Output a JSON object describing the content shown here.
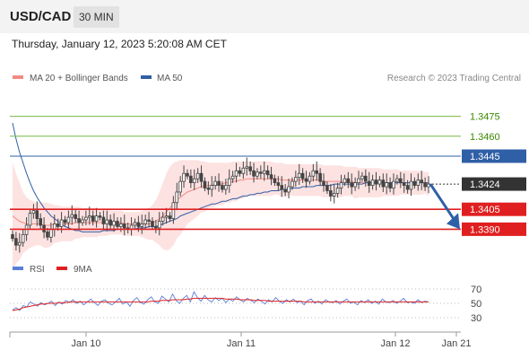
{
  "header": {
    "symbol": "USD/CAD",
    "timeframe": "30 MIN"
  },
  "datetime": "Thursday, January 12, 2023 5:20:08 AM CET",
  "legend": {
    "items": [
      {
        "label": "MA 20 + Bollinger Bands",
        "color": "#f28b82"
      },
      {
        "label": "MA 50",
        "color": "#2f5fa6"
      }
    ],
    "credit": "Research © 2023 Trading Central"
  },
  "rsi_legend": {
    "items": [
      {
        "label": "RSI",
        "color": "#5b7fd6"
      },
      {
        "label": "9MA",
        "color": "#e02020"
      }
    ]
  },
  "colors": {
    "candle": "#444444",
    "bollinger_fill": "#fde2e2",
    "bollinger_line": "#f28b82",
    "ma50": "#2f5fa6",
    "resistance_green": "#77b843",
    "resistance_blue": "#2f5fa6",
    "support_red": "#e02020",
    "last_price": "#333333",
    "arrow": "#2f5fa6"
  },
  "chart_data": [
    {
      "type": "candlestick",
      "symbol": "USD/CAD",
      "timeframe": "30 MIN",
      "x_ticks": [
        "Jan 10",
        "Jan 11",
        "Jan 12",
        "Jan 21"
      ],
      "ylim": [
        1.337,
        1.3495
      ],
      "price_levels": [
        {
          "label": "1.3475",
          "value": 1.3475,
          "kind": "resistance",
          "color": "#77b843",
          "text_color": "#3a8a00",
          "box": false
        },
        {
          "label": "1.3460",
          "value": 1.346,
          "kind": "resistance",
          "color": "#77b843",
          "text_color": "#3a8a00",
          "box": false
        },
        {
          "label": "1.3445",
          "value": 1.3445,
          "kind": "resistance",
          "color": "#2f5fa6",
          "text_color": "#ffffff",
          "box": true
        },
        {
          "label": "1.3424",
          "value": 1.3424,
          "kind": "last",
          "color": "#333333",
          "text_color": "#ffffff",
          "box": true
        },
        {
          "label": "1.3405",
          "value": 1.3405,
          "kind": "support",
          "color": "#e02020",
          "text_color": "#ffffff",
          "box": true
        },
        {
          "label": "1.3390",
          "value": 1.339,
          "kind": "support",
          "color": "#e02020",
          "text_color": "#ffffff",
          "box": true
        }
      ],
      "close_series": [
        1.3383,
        1.3378,
        1.338,
        1.3386,
        1.3393,
        1.3402,
        1.3404,
        1.3398,
        1.3393,
        1.3388,
        1.3384,
        1.339,
        1.3394,
        1.3392,
        1.3397,
        1.3395,
        1.3399,
        1.3401,
        1.3398,
        1.3395,
        1.3397,
        1.3399,
        1.34,
        1.3396,
        1.34,
        1.3399,
        1.3394,
        1.3397,
        1.3393,
        1.3396,
        1.3392,
        1.3394,
        1.3391,
        1.339,
        1.3393,
        1.3395,
        1.3392,
        1.3394,
        1.3397,
        1.3396,
        1.3392,
        1.3391,
        1.3396,
        1.3399,
        1.34,
        1.3398,
        1.341,
        1.3418,
        1.3426,
        1.3432,
        1.343,
        1.3425,
        1.3428,
        1.3432,
        1.3426,
        1.3421,
        1.342,
        1.3423,
        1.3426,
        1.3423,
        1.342,
        1.3423,
        1.3428,
        1.343,
        1.3434,
        1.3432,
        1.3436,
        1.3437,
        1.3434,
        1.343,
        1.3433,
        1.3432,
        1.3434,
        1.3431,
        1.3428,
        1.3425,
        1.3423,
        1.342,
        1.3418,
        1.3422,
        1.3426,
        1.3429,
        1.3432,
        1.3428,
        1.3426,
        1.343,
        1.3434,
        1.3432,
        1.3426,
        1.3423,
        1.3419,
        1.3415,
        1.3417,
        1.3421,
        1.3425,
        1.3428,
        1.3425,
        1.3422,
        1.3425,
        1.3428,
        1.343,
        1.3426,
        1.3423,
        1.3427,
        1.3424,
        1.3427,
        1.3422,
        1.3425,
        1.3421,
        1.3426,
        1.3428,
        1.3425,
        1.3423,
        1.342,
        1.3426,
        1.3423,
        1.3427,
        1.3425,
        1.3422,
        1.3424
      ],
      "bollinger_upper": [
        1.344,
        1.3432,
        1.3425,
        1.3418,
        1.3414,
        1.3412,
        1.3411,
        1.341,
        1.341,
        1.341,
        1.341,
        1.3409,
        1.3408,
        1.3408,
        1.3407,
        1.3407,
        1.3407,
        1.3407,
        1.3407,
        1.3407,
        1.3406,
        1.3406,
        1.3406,
        1.3406,
        1.3406,
        1.3405,
        1.3405,
        1.3405,
        1.3404,
        1.3404,
        1.3404,
        1.3404,
        1.3403,
        1.3403,
        1.3403,
        1.3403,
        1.3403,
        1.3404,
        1.3405,
        1.3406,
        1.3408,
        1.3412,
        1.3418,
        1.3425,
        1.3432,
        1.3437,
        1.344,
        1.3441,
        1.3442,
        1.3442,
        1.3442,
        1.3442,
        1.3442,
        1.3442,
        1.3441,
        1.3441,
        1.344,
        1.344,
        1.344,
        1.344,
        1.344,
        1.344,
        1.344,
        1.3441,
        1.3441,
        1.3441,
        1.3441,
        1.3441,
        1.3441,
        1.3441,
        1.3441,
        1.3441,
        1.3441,
        1.3441,
        1.3441,
        1.344,
        1.344,
        1.344,
        1.3439,
        1.3439,
        1.3439,
        1.3439,
        1.3439,
        1.3439,
        1.3439,
        1.3439,
        1.3439,
        1.3439,
        1.3439,
        1.3438,
        1.3438,
        1.3438,
        1.3438,
        1.3438,
        1.3438,
        1.3437,
        1.3437,
        1.3437,
        1.3437,
        1.3436,
        1.3436,
        1.3436,
        1.3436,
        1.3436,
        1.3436,
        1.3436,
        1.3435,
        1.3435,
        1.3435,
        1.3435,
        1.3435,
        1.3434,
        1.3434,
        1.3434,
        1.3434,
        1.3434,
        1.3434,
        1.3434,
        1.3433,
        1.3433
      ],
      "ma20": [
        1.34,
        1.3398,
        1.3396,
        1.3395,
        1.3394,
        1.3394,
        1.3394,
        1.3394,
        1.3394,
        1.3393,
        1.3393,
        1.3393,
        1.3394,
        1.3394,
        1.3394,
        1.3394,
        1.3394,
        1.3394,
        1.3395,
        1.3395,
        1.3395,
        1.3395,
        1.3395,
        1.3395,
        1.3395,
        1.3395,
        1.3395,
        1.3395,
        1.3395,
        1.3395,
        1.3395,
        1.3395,
        1.3394,
        1.3394,
        1.3394,
        1.3394,
        1.3394,
        1.3394,
        1.3394,
        1.3394,
        1.3395,
        1.3396,
        1.3398,
        1.34,
        1.3403,
        1.3406,
        1.3409,
        1.3412,
        1.3414,
        1.3416,
        1.3418,
        1.3419,
        1.342,
        1.3421,
        1.3422,
        1.3422,
        1.3423,
        1.3423,
        1.3424,
        1.3424,
        1.3424,
        1.3425,
        1.3425,
        1.3426,
        1.3426,
        1.3427,
        1.3427,
        1.3428,
        1.3428,
        1.3428,
        1.3428,
        1.3428,
        1.3428,
        1.3428,
        1.3428,
        1.3428,
        1.3428,
        1.3427,
        1.3427,
        1.3427,
        1.3427,
        1.3427,
        1.3427,
        1.3427,
        1.3427,
        1.3427,
        1.3427,
        1.3427,
        1.3427,
        1.3426,
        1.3426,
        1.3426,
        1.3426,
        1.3426,
        1.3426,
        1.3426,
        1.3426,
        1.3426,
        1.3425,
        1.3425,
        1.3425,
        1.3425,
        1.3425,
        1.3425,
        1.3425,
        1.3425,
        1.3425,
        1.3425,
        1.3425,
        1.3425,
        1.3425,
        1.3425,
        1.3425,
        1.3425,
        1.3425,
        1.3425,
        1.3425,
        1.3425,
        1.3425,
        1.3424
      ],
      "bollinger_lower": [
        1.336,
        1.3364,
        1.3367,
        1.3372,
        1.3374,
        1.3376,
        1.3377,
        1.3378,
        1.3378,
        1.3376,
        1.3376,
        1.3377,
        1.338,
        1.338,
        1.3381,
        1.3381,
        1.3381,
        1.3381,
        1.3383,
        1.3383,
        1.3384,
        1.3384,
        1.3384,
        1.3384,
        1.3384,
        1.3385,
        1.3385,
        1.3385,
        1.3386,
        1.3386,
        1.3386,
        1.3386,
        1.3385,
        1.3385,
        1.3385,
        1.3385,
        1.3385,
        1.3384,
        1.3383,
        1.3382,
        1.3382,
        1.338,
        1.3378,
        1.3375,
        1.3374,
        1.3375,
        1.3378,
        1.3383,
        1.3386,
        1.339,
        1.3394,
        1.3396,
        1.3398,
        1.34,
        1.3403,
        1.3403,
        1.3406,
        1.3406,
        1.3408,
        1.3408,
        1.3408,
        1.341,
        1.341,
        1.3411,
        1.3411,
        1.3413,
        1.3413,
        1.3415,
        1.3415,
        1.3415,
        1.3415,
        1.3415,
        1.3415,
        1.3415,
        1.3415,
        1.3416,
        1.3416,
        1.3414,
        1.3415,
        1.3415,
        1.3415,
        1.3415,
        1.3415,
        1.3415,
        1.3415,
        1.3415,
        1.3415,
        1.3415,
        1.3415,
        1.3414,
        1.3414,
        1.3414,
        1.3414,
        1.3414,
        1.3414,
        1.3415,
        1.3415,
        1.3415,
        1.3413,
        1.3414,
        1.3414,
        1.3414,
        1.3414,
        1.3414,
        1.3414,
        1.3414,
        1.3415,
        1.3415,
        1.3415,
        1.3415,
        1.3415,
        1.3416,
        1.3416,
        1.3416,
        1.3416,
        1.3416,
        1.3416,
        1.3416,
        1.3417,
        1.3415
      ],
      "ma50": [
        1.347,
        1.3458,
        1.3448,
        1.344,
        1.3432,
        1.3425,
        1.3419,
        1.3414,
        1.341,
        1.3406,
        1.3403,
        1.34,
        1.3398,
        1.3396,
        1.3394,
        1.3392,
        1.3391,
        1.339,
        1.3389,
        1.3389,
        1.3388,
        1.3388,
        1.3388,
        1.3388,
        1.3388,
        1.3388,
        1.3389,
        1.3389,
        1.3389,
        1.3389,
        1.339,
        1.339,
        1.339,
        1.339,
        1.339,
        1.339,
        1.3391,
        1.3391,
        1.3391,
        1.3392,
        1.3392,
        1.3392,
        1.3393,
        1.3394,
        1.3395,
        1.3396,
        1.3397,
        1.3398,
        1.34,
        1.3401,
        1.3402,
        1.3403,
        1.3404,
        1.3405,
        1.3406,
        1.3407,
        1.3408,
        1.3409,
        1.3409,
        1.341,
        1.3411,
        1.3411,
        1.3412,
        1.3413,
        1.3413,
        1.3414,
        1.3415,
        1.3415,
        1.3416,
        1.3416,
        1.3417,
        1.3417,
        1.3418,
        1.3418,
        1.3419,
        1.3419,
        1.3419,
        1.342,
        1.342,
        1.342,
        1.3421,
        1.3421,
        1.3421,
        1.3422,
        1.3422,
        1.3422,
        1.3422,
        1.3423,
        1.3423,
        1.3423,
        1.3423,
        1.3423,
        1.3424,
        1.3424,
        1.3424,
        1.3424,
        1.3424,
        1.3424,
        1.3424,
        1.3424,
        1.3424,
        1.3425,
        1.3425,
        1.3425,
        1.3425,
        1.3425,
        1.3425,
        1.3425,
        1.3425,
        1.3425,
        1.3425,
        1.3425,
        1.3425,
        1.3425,
        1.3425,
        1.3425,
        1.3425,
        1.3425,
        1.3425,
        1.3425
      ],
      "forecast": {
        "from": 1.3424,
        "to": 1.339,
        "direction": "down"
      }
    },
    {
      "type": "line",
      "name": "RSI",
      "ylim": [
        20,
        75
      ],
      "y_ticks": [
        70,
        50,
        30
      ],
      "rsi": [
        41,
        44,
        40,
        47,
        45,
        52,
        49,
        46,
        51,
        48,
        50,
        53,
        47,
        52,
        49,
        54,
        51,
        55,
        50,
        53,
        48,
        52,
        56,
        51,
        47,
        53,
        55,
        50,
        48,
        52,
        57,
        49,
        52,
        46,
        54,
        58,
        51,
        49,
        55,
        59,
        52,
        50,
        60,
        56,
        52,
        63,
        54,
        50,
        57,
        61,
        52,
        66,
        58,
        53,
        61,
        55,
        52,
        58,
        54,
        57,
        51,
        56,
        53,
        59,
        55,
        52,
        57,
        54,
        51,
        56,
        53,
        49,
        55,
        52,
        58,
        53,
        50,
        55,
        52,
        56,
        51,
        53,
        48,
        54,
        56,
        50,
        53,
        49,
        55,
        52,
        51,
        54,
        49,
        53,
        56,
        50,
        52,
        48,
        54,
        51,
        55,
        50,
        53,
        49,
        56,
        52,
        51,
        54,
        50,
        53,
        57,
        51,
        52,
        50,
        55,
        51,
        53,
        52
      ],
      "ma9": [
        40,
        41,
        42,
        44,
        45,
        46,
        47,
        48,
        49,
        49,
        50,
        50,
        50,
        51,
        51,
        51,
        52,
        52,
        52,
        52,
        52,
        52,
        52,
        52,
        52,
        52,
        52,
        52,
        52,
        52,
        52,
        52,
        52,
        52,
        52,
        52,
        52,
        52,
        52,
        53,
        53,
        53,
        54,
        54,
        54,
        55,
        55,
        55,
        55,
        56,
        56,
        57,
        57,
        57,
        57,
        57,
        57,
        57,
        57,
        57,
        56,
        56,
        56,
        56,
        55,
        55,
        55,
        55,
        54,
        54,
        54,
        54,
        53,
        53,
        53,
        53,
        53,
        53,
        53,
        53,
        53,
        53,
        52,
        52,
        52,
        52,
        52,
        52,
        52,
        52,
        52,
        52,
        52,
        52,
        52,
        52,
        52,
        52,
        52,
        52,
        52,
        52,
        52,
        52,
        52,
        52,
        52,
        52,
        52,
        52,
        52,
        52,
        52,
        52,
        52,
        52,
        52,
        52
      ]
    }
  ]
}
